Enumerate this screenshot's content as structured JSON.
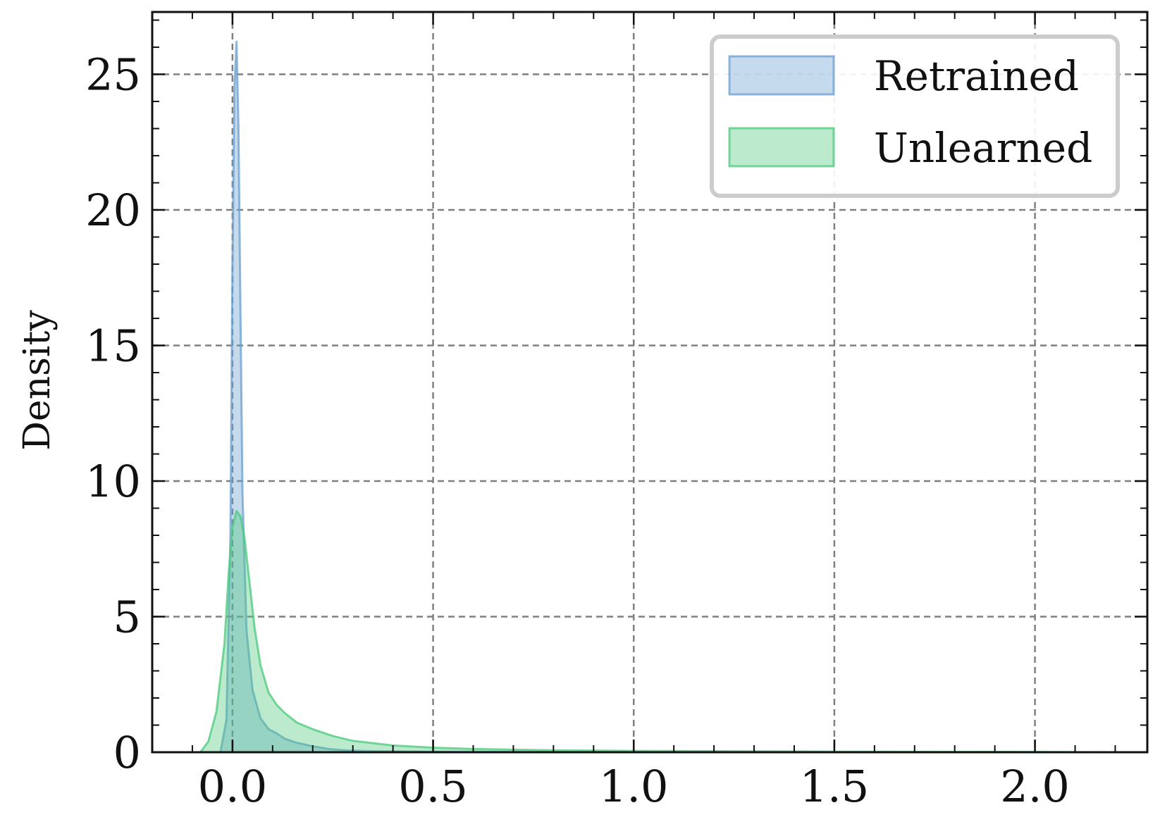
{
  "chart_data": {
    "type": "area",
    "title": "",
    "xlabel": "",
    "ylabel": "Density",
    "xlim": [
      -0.2,
      2.28
    ],
    "ylim": [
      0,
      27.3
    ],
    "grid": true,
    "legend_position": "top-right",
    "x_ticks": [
      "0.0",
      "0.5",
      "1.0",
      "1.5",
      "2.0"
    ],
    "y_ticks": [
      "0",
      "5",
      "10",
      "15",
      "20",
      "25"
    ],
    "colors": {
      "retrained": "#6a9fcf",
      "unlearned": "#4cc97c",
      "grid": "#808080"
    },
    "series": [
      {
        "name": "Retrained",
        "x": [
          -0.03,
          -0.015,
          -0.005,
          0.0,
          0.005,
          0.01,
          0.015,
          0.02,
          0.025,
          0.035,
          0.05,
          0.07,
          0.09,
          0.11,
          0.13,
          0.16,
          0.2,
          0.24,
          0.28,
          0.35,
          0.5,
          0.7,
          1.0,
          1.5,
          2.0,
          2.17
        ],
        "values": [
          0.0,
          1.2,
          8.0,
          18.0,
          24.5,
          26.2,
          23.0,
          16.0,
          9.5,
          4.5,
          2.3,
          1.25,
          0.85,
          0.7,
          0.5,
          0.35,
          0.22,
          0.12,
          0.07,
          0.04,
          0.02,
          0.01,
          0.0,
          0.0,
          0.0,
          0.0
        ]
      },
      {
        "name": "Unlearned",
        "x": [
          -0.08,
          -0.06,
          -0.04,
          -0.02,
          -0.01,
          0.0,
          0.01,
          0.02,
          0.03,
          0.04,
          0.055,
          0.07,
          0.09,
          0.11,
          0.13,
          0.16,
          0.2,
          0.25,
          0.3,
          0.4,
          0.5,
          0.6,
          0.8,
          1.0,
          1.5,
          2.0,
          2.17
        ],
        "values": [
          0.0,
          0.4,
          1.5,
          4.0,
          6.5,
          8.3,
          8.9,
          8.7,
          7.9,
          6.6,
          4.6,
          3.2,
          2.2,
          1.75,
          1.45,
          1.1,
          0.85,
          0.6,
          0.42,
          0.25,
          0.17,
          0.12,
          0.07,
          0.05,
          0.02,
          0.01,
          0.0
        ]
      }
    ]
  }
}
